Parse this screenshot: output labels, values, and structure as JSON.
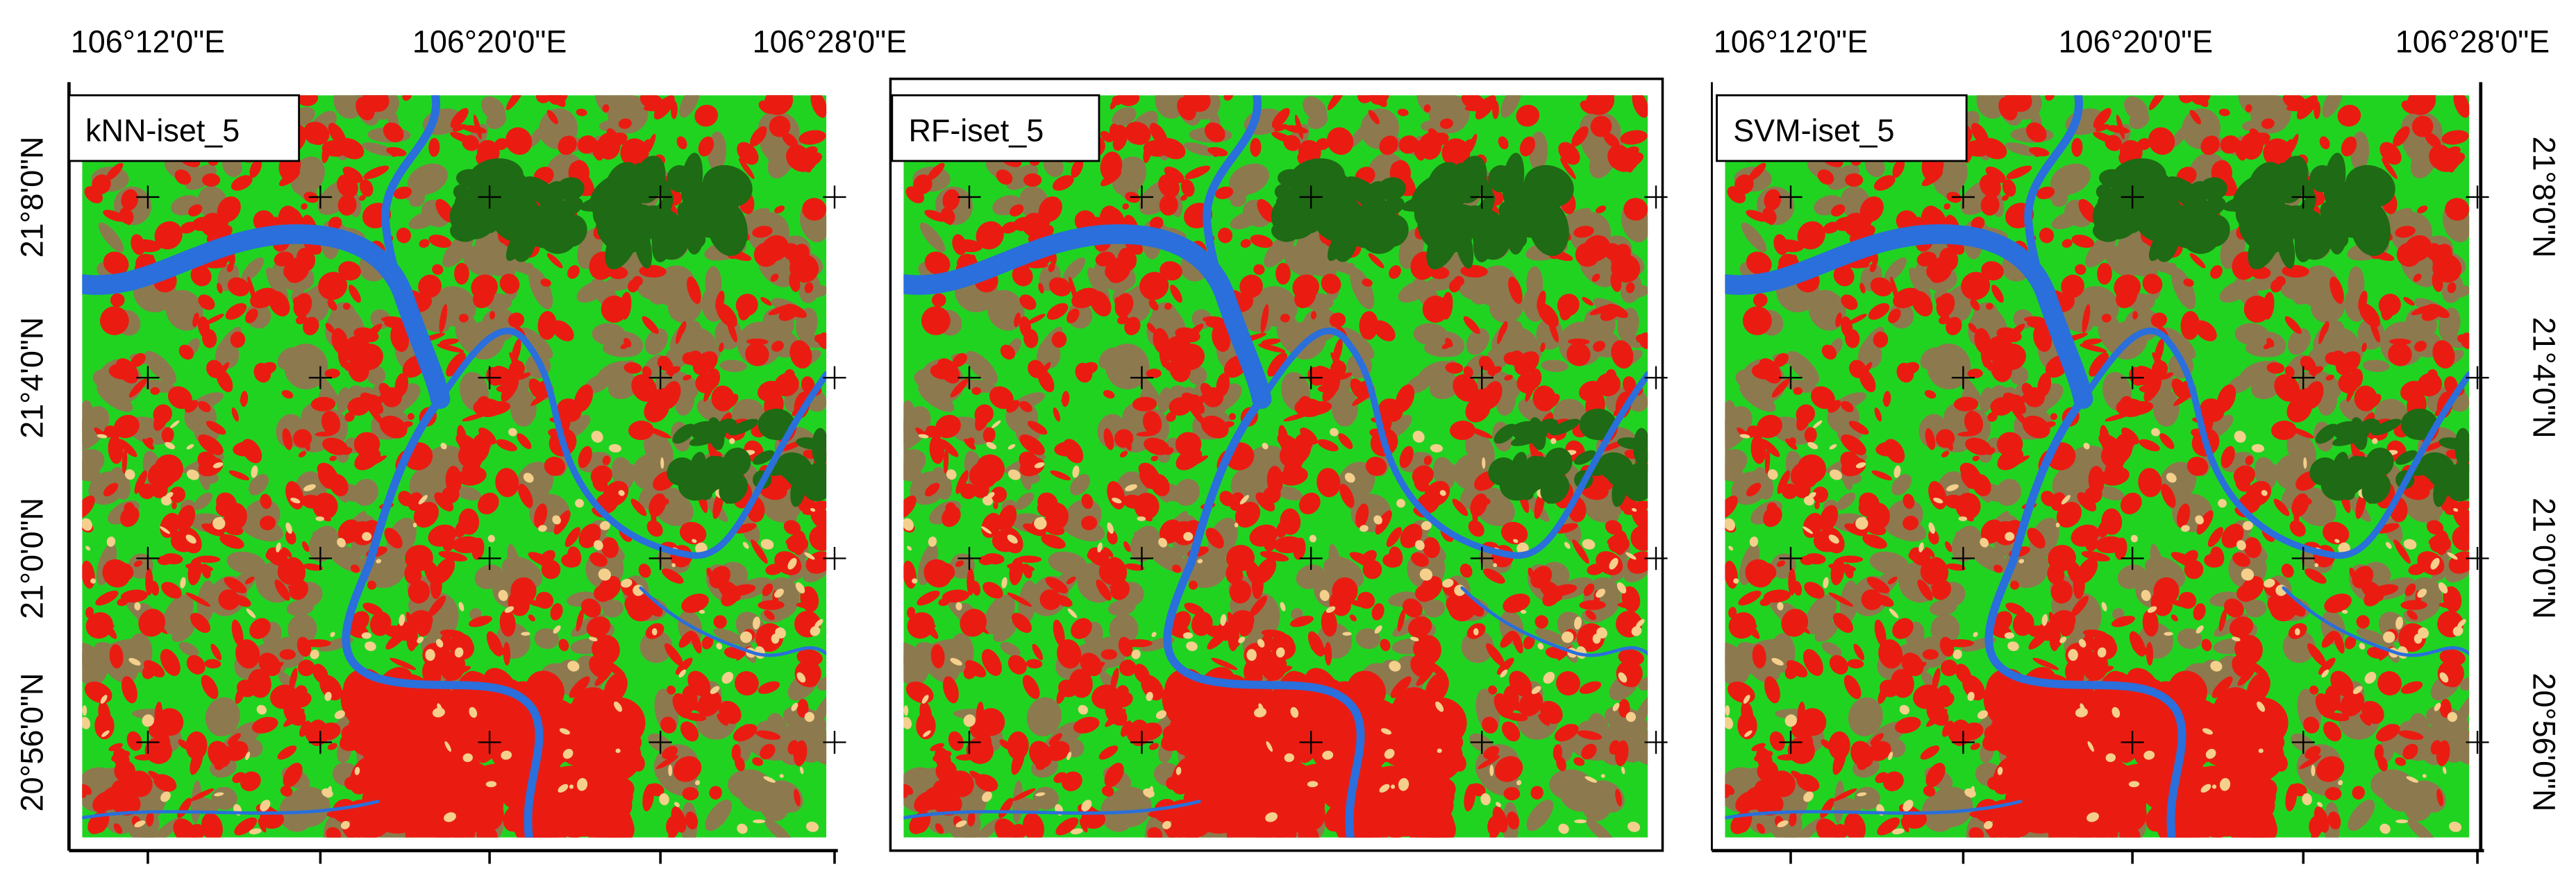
{
  "panels": [
    {
      "title": "kNN-iset_5",
      "top_labels": [
        "106°12'0\"E",
        "106°20'0\"E",
        "106°28'0\"E"
      ],
      "side_labels": [
        "21°8'0\"N",
        "21°4'0\"N",
        "21°0'0\"N",
        "20°56'0\"N"
      ]
    },
    {
      "title": "RF-iset_5"
    },
    {
      "title": "SVM-iset_5",
      "top_labels": [
        "106°12'0\"E",
        "106°20'0\"E",
        "106°28'0\"E"
      ],
      "side_labels": [
        "21°8'0\"N",
        "21°4'0\"N",
        "21°0'0\"N",
        "20°56'0\"N"
      ]
    }
  ]
}
